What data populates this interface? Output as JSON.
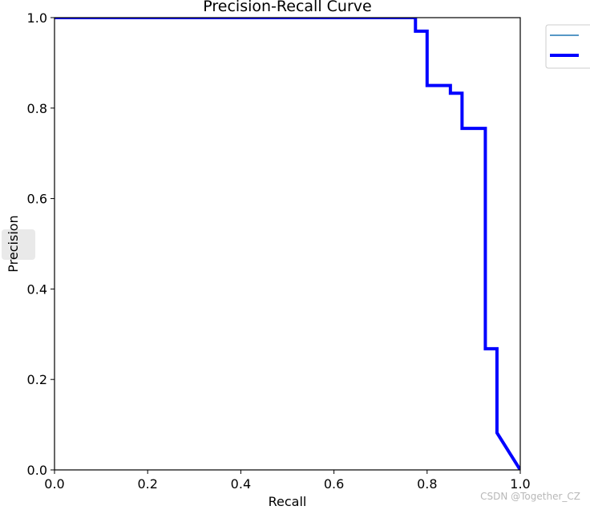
{
  "chart_data": {
    "type": "line",
    "title": "Precision-Recall Curve",
    "xlabel": "Recall",
    "ylabel": "Precision",
    "xlim": [
      0.0,
      1.0
    ],
    "ylim": [
      0.0,
      1.0
    ],
    "xticks": [
      0.0,
      0.2,
      0.4,
      0.6,
      0.8,
      1.0
    ],
    "yticks": [
      0.0,
      0.2,
      0.4,
      0.6,
      0.8,
      1.0
    ],
    "xtick_labels": [
      "0.0",
      "0.2",
      "0.4",
      "0.6",
      "0.8",
      "1.0"
    ],
    "ytick_labels": [
      "0.0",
      "0.2",
      "0.4",
      "0.6",
      "0.8",
      "1.0"
    ],
    "grid": false,
    "legend": {
      "placement": "outside-top-right",
      "entries": [
        {
          "label": "",
          "color": "#1f77b4",
          "style": "thin-line"
        },
        {
          "label": "",
          "color": "#0000ff",
          "style": "thick-line"
        }
      ]
    },
    "series": [
      {
        "color": "#0000ff",
        "style": "thick-line",
        "points": [
          {
            "x": 0.0,
            "y": 1.0
          },
          {
            "x": 0.775,
            "y": 1.0
          },
          {
            "x": 0.775,
            "y": 0.97
          },
          {
            "x": 0.8,
            "y": 0.97
          },
          {
            "x": 0.8,
            "y": 0.85
          },
          {
            "x": 0.85,
            "y": 0.85
          },
          {
            "x": 0.85,
            "y": 0.833
          },
          {
            "x": 0.875,
            "y": 0.833
          },
          {
            "x": 0.875,
            "y": 0.755
          },
          {
            "x": 0.925,
            "y": 0.755
          },
          {
            "x": 0.925,
            "y": 0.268
          },
          {
            "x": 0.95,
            "y": 0.268
          },
          {
            "x": 0.95,
            "y": 0.082
          },
          {
            "x": 1.0,
            "y": 0.0
          }
        ]
      }
    ]
  },
  "watermark": "CSDN @Together_CZ"
}
